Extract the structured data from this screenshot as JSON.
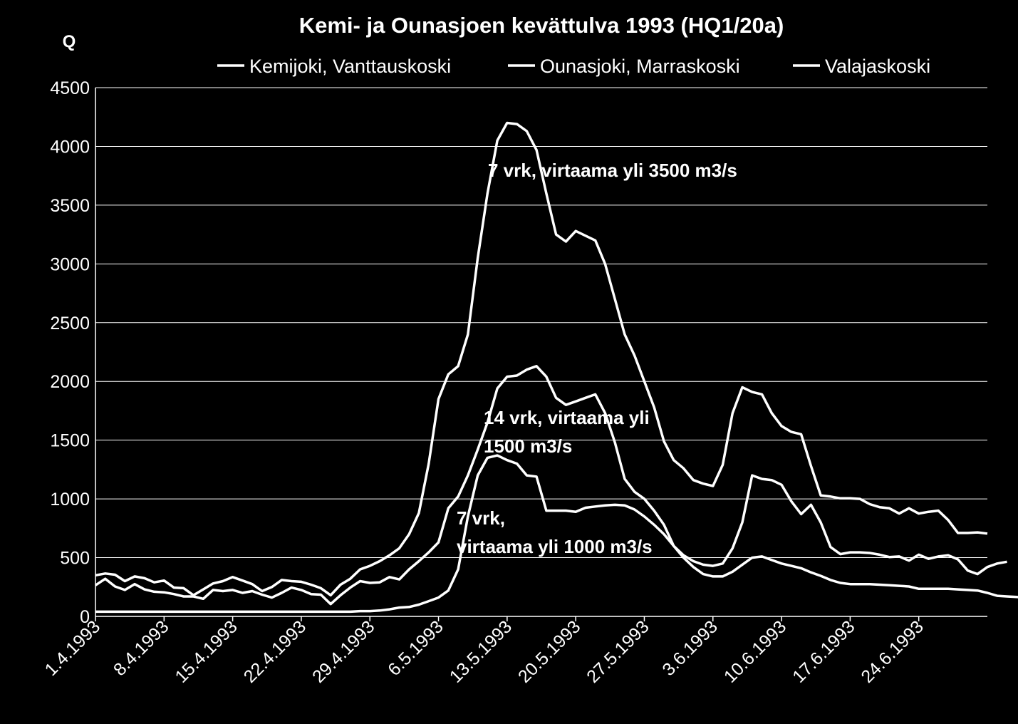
{
  "chart_data": {
    "type": "line",
    "title": "Kemi- ja Ounasjoen kevättulva 1993 (HQ1/20a)",
    "ylabel": "Q",
    "xlabel": "",
    "ylim": [
      0,
      4500
    ],
    "yticks": [
      0,
      500,
      1000,
      1500,
      2000,
      2500,
      3000,
      3500,
      4000,
      4500
    ],
    "grid": true,
    "legend_position": "top",
    "x_tick_labels": [
      "1.4.1993",
      "8.4.1993",
      "15.4.1993",
      "22.4.1993",
      "29.4.1993",
      "6.5.1993",
      "13.5.1993",
      "20.5.1993",
      "27.5.1993",
      "3.6.1993",
      "10.6.1993",
      "17.6.1993",
      "24.6.1993"
    ],
    "x_start": "1.4.1993",
    "x_step_days": 1,
    "series": [
      {
        "name": "Kemijoki, Vanttauskoski",
        "color": "#ffffff",
        "values": [
          350,
          365,
          355,
          300,
          340,
          325,
          290,
          305,
          245,
          240,
          180,
          230,
          280,
          300,
          335,
          305,
          275,
          215,
          250,
          310,
          300,
          295,
          270,
          240,
          180,
          270,
          320,
          400,
          430,
          470,
          520,
          580,
          700,
          880,
          1300,
          1850,
          2060,
          2130,
          2400,
          3050,
          3600,
          4050,
          4200,
          4190,
          4130,
          3970,
          3600,
          3250,
          3190,
          3280,
          3240,
          3200,
          3000,
          2700,
          2400,
          2220,
          2000,
          1780,
          1490,
          1330,
          1260,
          1160,
          1130,
          1110,
          1290,
          1730,
          1950,
          1910,
          1890,
          1730,
          1620,
          1570,
          1550,
          1280,
          1030,
          1020,
          1005,
          1005,
          1000,
          955,
          930,
          920,
          875,
          920,
          875,
          890,
          900,
          820,
          710,
          710,
          715,
          705
        ]
      },
      {
        "name": "Ounasjoki, Marraskoski",
        "color": "#ffffff",
        "values": [
          265,
          320,
          255,
          225,
          275,
          230,
          210,
          205,
          190,
          170,
          170,
          150,
          225,
          215,
          225,
          200,
          215,
          185,
          160,
          200,
          245,
          225,
          190,
          185,
          105,
          180,
          245,
          300,
          285,
          290,
          335,
          315,
          400,
          470,
          545,
          630,
          920,
          1020,
          1200,
          1420,
          1650,
          1940,
          2040,
          2050,
          2100,
          2130,
          2040,
          1860,
          1800,
          1830,
          1860,
          1890,
          1730,
          1480,
          1170,
          1060,
          1000,
          900,
          780,
          600,
          520,
          470,
          440,
          430,
          450,
          580,
          800,
          1200,
          1170,
          1160,
          1120,
          980,
          870,
          950,
          800,
          590,
          530,
          545,
          545,
          540,
          525,
          505,
          510,
          475,
          525,
          490,
          510,
          520,
          485,
          390,
          360,
          420,
          450,
          465
        ]
      },
      {
        "name": "Valajaskoski",
        "color": "#ffffff",
        "values": [
          40,
          40,
          40,
          40,
          40,
          40,
          40,
          40,
          40,
          40,
          40,
          40,
          40,
          40,
          40,
          40,
          40,
          40,
          40,
          40,
          40,
          40,
          40,
          40,
          40,
          40,
          40,
          45,
          45,
          50,
          60,
          75,
          80,
          100,
          130,
          160,
          220,
          400,
          850,
          1200,
          1350,
          1370,
          1330,
          1300,
          1200,
          1190,
          900,
          900,
          900,
          890,
          925,
          935,
          945,
          950,
          945,
          910,
          850,
          780,
          700,
          600,
          500,
          420,
          360,
          340,
          340,
          380,
          440,
          500,
          510,
          480,
          450,
          430,
          410,
          375,
          345,
          310,
          285,
          275,
          275,
          275,
          270,
          265,
          260,
          255,
          235,
          235,
          235,
          235,
          230,
          225,
          220,
          200,
          175,
          170,
          165,
          160
        ]
      }
    ]
  },
  "annotations": {
    "a1": "7 vrk,  virtaama yli 3500 m3/s",
    "a2_line1": "14 vrk, virtaama  yli",
    "a2_line2": "1500 m3/s",
    "a3_line1": "7 vrk,",
    "a3_line2": "virtaama yli 1000 m3/s"
  }
}
